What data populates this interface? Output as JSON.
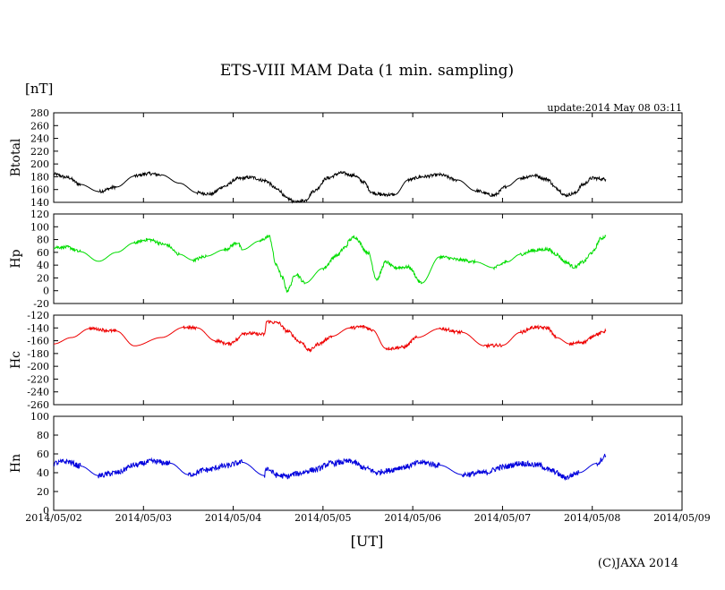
{
  "chart_data": {
    "type": "line",
    "title": "ETS-VIII MAM Data (1 min. sampling)",
    "unit_label": "[nT]",
    "update_text": "update:2014 May 08 03:11",
    "xlabel": "[UT]",
    "copyright": "(C)JAXA 2014",
    "x_ticks": [
      "2014/05/02",
      "2014/05/03",
      "2014/05/04",
      "2014/05/05",
      "2014/05/06",
      "2014/05/07",
      "2014/05/08",
      "2014/05/09"
    ],
    "xlim": [
      0,
      7
    ],
    "panels": [
      {
        "name": "Btotal",
        "color": "#000000",
        "ylim": [
          140,
          280
        ],
        "yticks": [
          "280",
          "260",
          "240",
          "220",
          "200",
          "180",
          "160",
          "140"
        ],
        "noise": 2.5,
        "x": [
          0,
          0.15,
          0.3,
          0.5,
          0.7,
          0.9,
          1.05,
          1.2,
          1.4,
          1.6,
          1.75,
          1.9,
          2.05,
          2.2,
          2.35,
          2.5,
          2.6,
          2.7,
          2.8,
          2.9,
          3.05,
          3.2,
          3.35,
          3.45,
          3.55,
          3.65,
          3.8,
          3.95,
          4.1,
          4.3,
          4.5,
          4.7,
          4.9,
          5.05,
          5.2,
          5.35,
          5.5,
          5.6,
          5.7,
          5.8,
          5.9,
          6.0,
          6.15
        ],
        "y": [
          184,
          179,
          168,
          157,
          164,
          181,
          185,
          183,
          170,
          155,
          153,
          165,
          177,
          179,
          174,
          160,
          146,
          140,
          143,
          158,
          178,
          186,
          182,
          172,
          155,
          152,
          152,
          175,
          180,
          183,
          175,
          158,
          151,
          165,
          178,
          182,
          176,
          162,
          151,
          154,
          168,
          178,
          176
        ]
      },
      {
        "name": "Hp",
        "color": "#00dd00",
        "ylim": [
          -20,
          120
        ],
        "yticks": [
          "120",
          "100",
          "80",
          "60",
          "40",
          "20",
          "0",
          "-20"
        ],
        "noise": 2.5,
        "x": [
          0,
          0.15,
          0.3,
          0.5,
          0.7,
          0.9,
          1.05,
          1.25,
          1.4,
          1.55,
          1.7,
          1.9,
          2.05,
          2.1,
          2.3,
          2.4,
          2.48,
          2.55,
          2.6,
          2.7,
          2.8,
          3.0,
          3.15,
          3.25,
          3.3,
          3.35,
          3.5,
          3.6,
          3.7,
          3.8,
          3.95,
          4.1,
          4.3,
          4.55,
          4.7,
          4.9,
          5.05,
          5.2,
          5.35,
          5.5,
          5.6,
          5.7,
          5.8,
          5.9,
          6.0,
          6.1,
          6.15
        ],
        "y": [
          68,
          68,
          61,
          46,
          60,
          75,
          80,
          72,
          57,
          48,
          54,
          64,
          75,
          64,
          78,
          85,
          40,
          20,
          0,
          26,
          12,
          35,
          55,
          68,
          80,
          84,
          60,
          18,
          45,
          36,
          37,
          12,
          53,
          48,
          45,
          36,
          45,
          57,
          63,
          65,
          57,
          45,
          37,
          45,
          60,
          82,
          85
        ]
      },
      {
        "name": "Hc",
        "color": "#ee0000",
        "ylim": [
          -260,
          -120
        ],
        "yticks": [
          "-120",
          "-140",
          "-160",
          "-180",
          "-200",
          "-220",
          "-240",
          "-260"
        ],
        "noise": 2.5,
        "x": [
          0,
          0.2,
          0.4,
          0.7,
          0.9,
          1.2,
          1.45,
          1.6,
          1.8,
          1.95,
          2.05,
          2.1,
          2.35,
          2.37,
          2.5,
          2.6,
          2.75,
          2.85,
          2.95,
          3.1,
          3.3,
          3.45,
          3.55,
          3.7,
          3.75,
          3.9,
          4.05,
          4.3,
          4.55,
          4.8,
          5.0,
          5.2,
          5.35,
          5.5,
          5.6,
          5.75,
          5.9,
          6.05,
          6.15
        ],
        "y": [
          -165,
          -155,
          -141,
          -145,
          -168,
          -155,
          -139,
          -140,
          -160,
          -165,
          -158,
          -148,
          -150,
          -130,
          -132,
          -145,
          -162,
          -175,
          -165,
          -153,
          -140,
          -138,
          -143,
          -172,
          -172,
          -170,
          -155,
          -141,
          -147,
          -168,
          -167,
          -147,
          -139,
          -140,
          -155,
          -165,
          -162,
          -150,
          -145
        ]
      },
      {
        "name": "Hn",
        "color": "#0000dd",
        "ylim": [
          0,
          100
        ],
        "yticks": [
          "100",
          "80",
          "60",
          "40",
          "20",
          "0"
        ],
        "noise": 3,
        "x": [
          0,
          0.15,
          0.3,
          0.5,
          0.7,
          0.9,
          1.1,
          1.3,
          1.5,
          1.7,
          1.9,
          2.1,
          2.35,
          2.36,
          2.5,
          2.6,
          2.7,
          2.9,
          3.1,
          3.3,
          3.5,
          3.6,
          3.7,
          3.9,
          4.1,
          4.3,
          4.55,
          4.8,
          5.0,
          5.2,
          5.4,
          5.55,
          5.7,
          5.85,
          6.05,
          6.15
        ],
        "y": [
          50,
          52,
          47,
          37,
          40,
          48,
          52,
          50,
          38,
          43,
          47,
          51,
          37,
          45,
          37,
          36,
          39,
          43,
          50,
          52,
          44,
          40,
          42,
          46,
          51,
          48,
          38,
          40,
          46,
          50,
          48,
          42,
          35,
          40,
          50,
          58
        ]
      }
    ]
  }
}
